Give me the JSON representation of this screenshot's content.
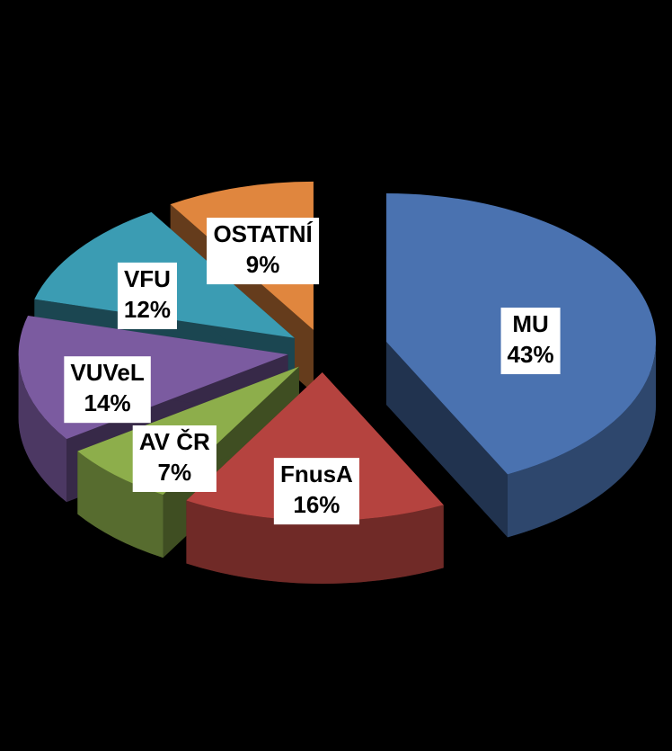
{
  "chart_data": {
    "type": "pie3d",
    "categories": [
      "MU",
      "FnusA",
      "AV ČR",
      "VUVeL",
      "VFU",
      "OSTATNÍ"
    ],
    "values": [
      43,
      16,
      7,
      14,
      12,
      9
    ],
    "value_labels": [
      "43%",
      "16%",
      "7%",
      "14%",
      "12%",
      "9%"
    ],
    "colors": [
      "#4a72b0",
      "#b5433f",
      "#8dae4b",
      "#7b5ba0",
      "#3b9cb3",
      "#e0863e"
    ]
  }
}
